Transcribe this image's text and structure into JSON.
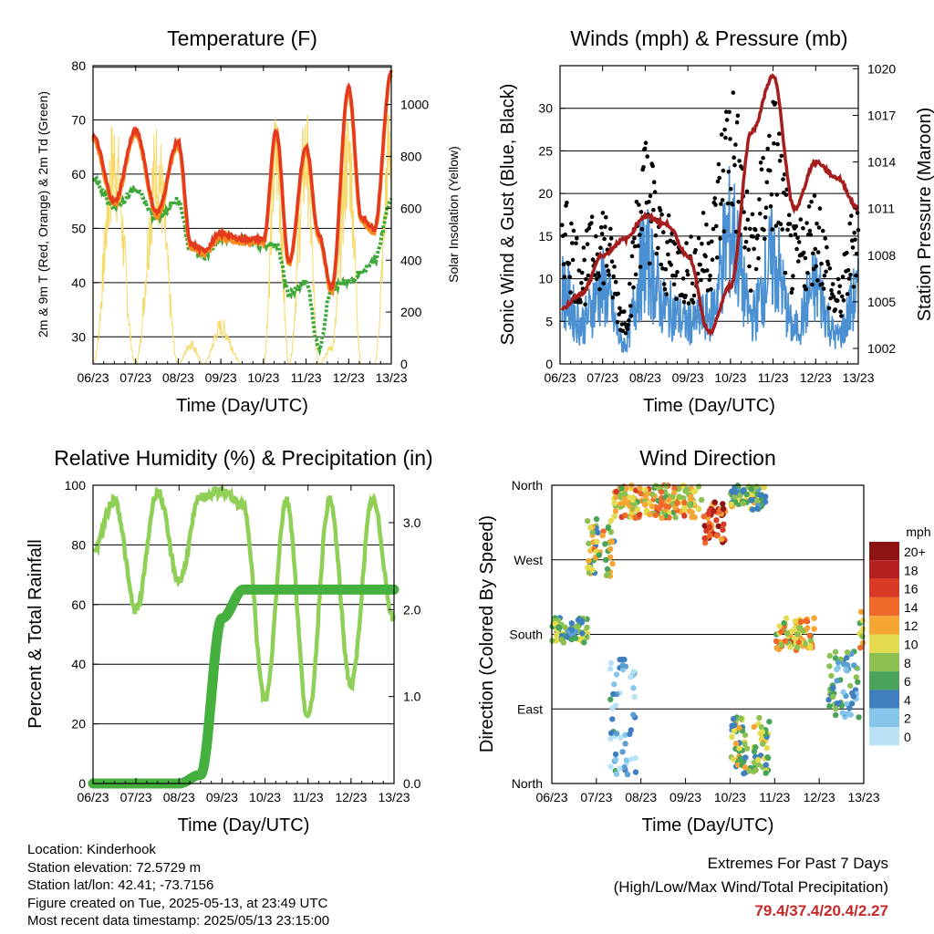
{
  "x_ticks": [
    "06/23",
    "07/23",
    "08/23",
    "09/23",
    "10/23",
    "11/23",
    "12/23",
    "13/23"
  ],
  "xlabel": "Time (Day/UTC)",
  "colors": {
    "temp2m": "#e53a1e",
    "temp9m": "#f58a1f",
    "dewpoint": "#3ea93a",
    "insolation": "#f7d96a",
    "gust": "#000000",
    "wind": "#4a90d2",
    "pressure": "#a51d1d",
    "rh": "#8fcf56",
    "precip": "#45b03e"
  },
  "panels": {
    "temperature": {
      "title": "Temperature (F)"
    },
    "winds": {
      "title": "Winds (mph) & Pressure (mb)"
    },
    "humidity": {
      "title": "Relative Humidity (%) & Precipitation (in)"
    },
    "direction": {
      "title": "Wind Direction"
    }
  },
  "chart_data": [
    {
      "type": "line",
      "title": "Temperature (F)",
      "xlabel": "Time (Day/UTC)",
      "ylabel": "2m & 9m T (Red, Orange) & 2m Td (Green)",
      "y2label": "Solar Insolation (Yellow)",
      "x": [
        6,
        6.5,
        7,
        7.5,
        8,
        8.3,
        8.6,
        9,
        9.5,
        10,
        10.3,
        10.6,
        11,
        11.3,
        11.6,
        12,
        12.3,
        12.6,
        13
      ],
      "ylim": [
        25,
        80
      ],
      "yticks": [
        30,
        40,
        50,
        60,
        70,
        80
      ],
      "y2lim": [
        0,
        1150
      ],
      "y2ticks": [
        0,
        200,
        400,
        600,
        800,
        1000
      ],
      "series": [
        {
          "name": "2m T",
          "values": [
            67,
            55,
            68,
            53,
            66,
            47,
            46,
            49,
            48,
            48,
            68,
            44,
            65,
            49,
            39,
            76,
            52,
            50,
            79
          ]
        },
        {
          "name": "2m Td",
          "values": [
            59,
            54,
            57,
            52,
            55,
            46,
            45,
            48,
            48,
            47,
            47,
            38,
            40,
            28,
            39,
            40,
            42,
            44,
            55
          ]
        },
        {
          "name": "Solar Insolation",
          "values": [
            0,
            990,
            0,
            960,
            0,
            100,
            0,
            180,
            0,
            0,
            1020,
            0,
            1020,
            0,
            80,
            1020,
            0,
            0,
            1100
          ]
        }
      ]
    },
    {
      "type": "line",
      "title": "Winds (mph) & Pressure (mb)",
      "xlabel": "Time (Day/UTC)",
      "ylabel": "Sonic Wind & Gust (Blue, Black)",
      "y2label": "Station Pressure (Maroon)",
      "x": [
        6,
        6.5,
        7,
        7.5,
        8,
        8.5,
        9,
        9.5,
        10,
        10.5,
        11,
        11.5,
        12,
        12.5,
        13
      ],
      "ylim": [
        0,
        35
      ],
      "yticks": [
        0,
        5,
        10,
        15,
        20,
        25,
        30
      ],
      "y2lim": [
        1001,
        1020.2
      ],
      "y2ticks": [
        1002,
        1005,
        1008,
        1011,
        1014,
        1017,
        1020
      ],
      "series": [
        {
          "name": "Gust",
          "values": [
            18,
            12,
            16,
            6,
            22,
            14,
            12,
            15,
            28,
            15,
            26,
            13,
            17,
            8,
            17
          ]
        },
        {
          "name": "Wind",
          "values": [
            11,
            6,
            11,
            3,
            15,
            8,
            6,
            7,
            19,
            7,
            15,
            5,
            11,
            4,
            10
          ]
        },
        {
          "name": "Pressure",
          "values": [
            1004.5,
            1005.5,
            1008,
            1009,
            1010.5,
            1010,
            1008,
            1003,
            1006,
            1016,
            1019.5,
            1011,
            1014,
            1013,
            1011
          ]
        }
      ]
    },
    {
      "type": "line",
      "title": "Relative Humidity (%) & Precipitation (in)",
      "xlabel": "Time (Day/UTC)",
      "ylabel": "Percent & Total Rainfall",
      "x": [
        6,
        6.5,
        7,
        7.5,
        8,
        8.5,
        9,
        9.5,
        10,
        10.5,
        11,
        11.5,
        12,
        12.5,
        13
      ],
      "ylim": [
        0,
        100
      ],
      "yticks": [
        0,
        20,
        40,
        60,
        80,
        100
      ],
      "y2lim": [
        0,
        3.43
      ],
      "y2ticks": [
        0.0,
        1.0,
        2.0,
        3.0
      ],
      "series": [
        {
          "name": "RH",
          "values": [
            78,
            95,
            58,
            98,
            68,
            96,
            98,
            93,
            28,
            95,
            22,
            95,
            33,
            95,
            55
          ]
        },
        {
          "name": "Total Rainfall",
          "values": [
            0,
            0,
            0,
            0,
            0,
            0.1,
            1.9,
            2.23,
            2.23,
            2.23,
            2.23,
            2.23,
            2.23,
            2.23,
            2.23
          ]
        }
      ]
    },
    {
      "type": "scatter",
      "title": "Wind Direction",
      "xlabel": "Time (Day/UTC)",
      "ylabel": "Direction (Colored By Speed)",
      "ylim": [
        0,
        360
      ],
      "yticks": [
        "North",
        "East",
        "South",
        "West",
        "North"
      ],
      "legend": {
        "title": "mph",
        "labels": [
          "20+",
          "18",
          "16",
          "14",
          "12",
          "10",
          "8",
          "6",
          "4",
          "2",
          "0"
        ],
        "position": "right"
      },
      "clusters": [
        {
          "x": [
            6.0,
            6.8
          ],
          "direction": [
            170,
            200
          ],
          "speed": 8
        },
        {
          "x": [
            6.8,
            7.4
          ],
          "direction": [
            250,
            320
          ],
          "speed": 11
        },
        {
          "x": [
            7.4,
            9.4
          ],
          "direction": [
            320,
            360
          ],
          "speed": 13
        },
        {
          "x": [
            9.4,
            9.9
          ],
          "direction": [
            290,
            340
          ],
          "speed": 18
        },
        {
          "x": [
            10.0,
            10.8
          ],
          "direction": [
            330,
            360
          ],
          "speed": 9
        },
        {
          "x": [
            7.3,
            7.9
          ],
          "direction": [
            10,
            150
          ],
          "speed": 3
        },
        {
          "x": [
            10.0,
            10.9
          ],
          "direction": [
            10,
            80
          ],
          "speed": 10
        },
        {
          "x": [
            11.0,
            11.9
          ],
          "direction": [
            160,
            200
          ],
          "speed": 13
        },
        {
          "x": [
            12.2,
            12.9
          ],
          "direction": [
            80,
            160
          ],
          "speed": 6
        },
        {
          "x": [
            12.9,
            13.0
          ],
          "direction": [
            160,
            210
          ],
          "speed": 11
        }
      ]
    }
  ],
  "footer": {
    "location": "Location: Kinderhook",
    "elevation": "Station elevation: 72.5729 m",
    "latlon": "Station lat/lon: 42.41; -73.7156",
    "created": "Figure created on Tue, 2025-05-13, at 23:49 UTC",
    "recent": "Most recent data timestamp: 2025/05/13 23:15:00",
    "extremes_title": "Extremes For Past 7 Days",
    "extremes_sub": "(High/Low/Max Wind/Total Precipitation)",
    "extremes_values": "79.4/37.4/20.4/2.27"
  }
}
